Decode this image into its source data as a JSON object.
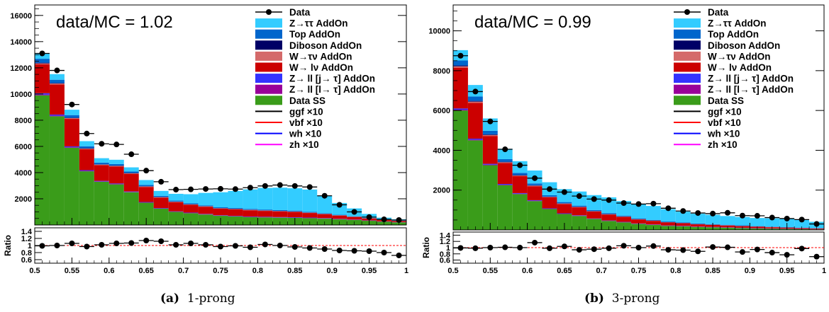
{
  "captions": [
    {
      "label": "(a)",
      "text": "1-prong"
    },
    {
      "label": "(b)",
      "text": "3-prong"
    }
  ],
  "chart_data": [
    {
      "type": "bar",
      "stacked": true,
      "panel": "a",
      "annotation": "data/MC = 1.02",
      "x_edges": [
        0.5,
        0.52,
        0.54,
        0.56,
        0.58,
        0.6,
        0.62,
        0.64,
        0.66,
        0.68,
        0.7,
        0.72,
        0.74,
        0.76,
        0.78,
        0.8,
        0.82,
        0.84,
        0.86,
        0.88,
        0.9,
        0.92,
        0.94,
        0.96,
        0.98,
        1.0
      ],
      "xlim": [
        0.5,
        1.0
      ],
      "ylim": [
        0,
        16800
      ],
      "yticks": [
        2000,
        4000,
        6000,
        8000,
        10000,
        12000,
        14000,
        16000
      ],
      "xticks": [
        0.5,
        0.55,
        0.6,
        0.65,
        0.7,
        0.75,
        0.8,
        0.85,
        0.9,
        0.95,
        1
      ],
      "xtick_labels": [
        "0.5",
        "0.55",
        "0.6",
        "0.65",
        "0.7",
        "0.75",
        "0.8",
        "0.85",
        "0.9",
        "0.95",
        "1"
      ],
      "stack": [
        {
          "name": "Data SS",
          "color": "#3a9c1a",
          "values": [
            9900,
            8300,
            5900,
            4100,
            3300,
            3100,
            2500,
            1700,
            1250,
            1000,
            900,
            800,
            700,
            650,
            600,
            580,
            560,
            550,
            520,
            480,
            430,
            380,
            320,
            250,
            200
          ]
        },
        {
          "name": "Z→ ll [l→ τ] AddOn",
          "color": "#990099",
          "values": [
            60,
            50,
            40,
            35,
            30,
            30,
            25,
            25,
            20,
            20,
            20,
            20,
            20,
            20,
            20,
            20,
            20,
            20,
            20,
            20,
            20,
            15,
            15,
            10,
            10
          ]
        },
        {
          "name": "Z→ ll [j→ τ] AddOn",
          "color": "#3333ff",
          "values": [
            100,
            80,
            60,
            50,
            40,
            40,
            35,
            30,
            25,
            25,
            25,
            25,
            25,
            25,
            25,
            25,
            25,
            25,
            25,
            25,
            20,
            20,
            15,
            15,
            10
          ]
        },
        {
          "name": "W→ lν AddOn",
          "color": "#cc0000",
          "values": [
            2200,
            2300,
            2100,
            1600,
            1200,
            1300,
            1350,
            1150,
            800,
            700,
            600,
            550,
            500,
            500,
            480,
            450,
            430,
            400,
            350,
            300,
            250,
            200,
            150,
            100,
            80
          ]
        },
        {
          "name": "W→τν AddOn",
          "color": "#d46a6a",
          "values": [
            80,
            70,
            60,
            50,
            40,
            40,
            40,
            35,
            30,
            30,
            30,
            30,
            30,
            30,
            30,
            30,
            30,
            25,
            25,
            20,
            20,
            15,
            15,
            10,
            10
          ]
        },
        {
          "name": "Diboson AddOn",
          "color": "#000066",
          "values": [
            50,
            40,
            30,
            25,
            20,
            20,
            20,
            20,
            15,
            15,
            15,
            15,
            15,
            15,
            15,
            15,
            15,
            15,
            15,
            15,
            10,
            10,
            10,
            10,
            10
          ]
        },
        {
          "name": "Top AddOn",
          "color": "#0066cc",
          "values": [
            300,
            250,
            200,
            150,
            130,
            120,
            110,
            100,
            80,
            70,
            60,
            60,
            60,
            60,
            60,
            60,
            60,
            60,
            50,
            40,
            30,
            25,
            20,
            15,
            15
          ]
        },
        {
          "name": "Z→ττ AddOn",
          "color": "#33ccff",
          "values": [
            410,
            430,
            410,
            390,
            340,
            330,
            320,
            370,
            380,
            520,
            700,
            950,
            1150,
            1300,
            1490,
            1650,
            1710,
            1710,
            1700,
            1330,
            900,
            600,
            300,
            150,
            100
          ]
        }
      ],
      "data": {
        "name": "Data",
        "values": [
          13100,
          11800,
          9200,
          6980,
          6200,
          6150,
          5400,
          4150,
          3300,
          2700,
          2720,
          2750,
          2760,
          2740,
          2850,
          2980,
          3050,
          2980,
          2900,
          2230,
          1540,
          1000,
          600,
          430,
          380
        ]
      },
      "ratio": {
        "ylabel": "Ratio",
        "ylim": [
          0.5,
          1.5
        ],
        "yticks": [
          0.6,
          0.8,
          1,
          1.2,
          1.4
        ],
        "ytick_labels": [
          "0.6",
          "0.8",
          "1",
          "1.2",
          "1.4"
        ],
        "values": [
          0.99,
          1.0,
          1.06,
          0.97,
          1.02,
          1.06,
          1.07,
          1.14,
          1.12,
          1.02,
          1.06,
          1.02,
          0.97,
          0.99,
          0.95,
          1.03,
          1.0,
          0.96,
          0.93,
          0.9,
          0.86,
          0.85,
          0.84,
          0.8,
          0.72
        ]
      },
      "overlay_lines": [
        {
          "name": "ggf ×10",
          "color": "#000000"
        },
        {
          "name": "vbf ×10",
          "color": "#ff0000"
        },
        {
          "name": "wh ×10",
          "color": "#0000ff"
        },
        {
          "name": "zh ×10",
          "color": "#ff00ff"
        }
      ],
      "legend_position": "top-right"
    },
    {
      "type": "bar",
      "stacked": true,
      "panel": "b",
      "annotation": "data/MC = 0.99",
      "x_edges": [
        0.5,
        0.52,
        0.54,
        0.56,
        0.58,
        0.6,
        0.62,
        0.64,
        0.66,
        0.68,
        0.7,
        0.72,
        0.74,
        0.76,
        0.78,
        0.8,
        0.82,
        0.84,
        0.86,
        0.88,
        0.9,
        0.92,
        0.94,
        0.96,
        0.98,
        1.0
      ],
      "xlim": [
        0.5,
        1.0
      ],
      "ylim": [
        0,
        11300
      ],
      "yticks": [
        2000,
        4000,
        6000,
        8000,
        10000
      ],
      "xticks": [
        0.5,
        0.55,
        0.6,
        0.65,
        0.7,
        0.75,
        0.8,
        0.85,
        0.9,
        0.95,
        1
      ],
      "xtick_labels": [
        "0.5",
        "0.55",
        "0.6",
        "0.65",
        "0.7",
        "0.75",
        "0.8",
        "0.85",
        "0.9",
        "0.95",
        "1"
      ],
      "stack": [
        {
          "name": "Data SS",
          "color": "#3a9c1a",
          "values": [
            6000,
            4500,
            3250,
            2250,
            1800,
            1450,
            1050,
            800,
            700,
            550,
            450,
            380,
            300,
            250,
            200,
            180,
            150,
            130,
            110,
            90,
            70,
            60,
            50,
            40,
            30
          ]
        },
        {
          "name": "Z→ ll [l→ τ] AddOn",
          "color": "#990099",
          "values": [
            40,
            35,
            30,
            25,
            20,
            20,
            15,
            15,
            15,
            10,
            10,
            10,
            10,
            10,
            10,
            10,
            10,
            10,
            10,
            10,
            10,
            5,
            5,
            5,
            5
          ]
        },
        {
          "name": "Z→ ll [j→ τ] AddOn",
          "color": "#3333ff",
          "values": [
            60,
            50,
            40,
            35,
            30,
            25,
            20,
            20,
            20,
            15,
            15,
            15,
            15,
            15,
            15,
            15,
            10,
            10,
            10,
            10,
            10,
            10,
            10,
            5,
            5
          ]
        },
        {
          "name": "W→ lν AddOn",
          "color": "#cc0000",
          "values": [
            2050,
            1800,
            1400,
            1050,
            850,
            700,
            550,
            470,
            400,
            350,
            300,
            250,
            200,
            180,
            150,
            130,
            110,
            100,
            90,
            80,
            70,
            60,
            50,
            40,
            30
          ]
        },
        {
          "name": "W→τν AddOn",
          "color": "#d46a6a",
          "values": [
            70,
            60,
            50,
            40,
            35,
            30,
            25,
            20,
            20,
            15,
            15,
            15,
            10,
            10,
            10,
            10,
            10,
            10,
            10,
            10,
            10,
            10,
            5,
            5,
            5
          ]
        },
        {
          "name": "Diboson AddOn",
          "color": "#000066",
          "values": [
            40,
            35,
            30,
            25,
            20,
            20,
            15,
            15,
            10,
            10,
            10,
            10,
            10,
            10,
            10,
            10,
            10,
            10,
            10,
            10,
            5,
            5,
            5,
            5,
            5
          ]
        },
        {
          "name": "Top AddOn",
          "color": "#0066cc",
          "values": [
            250,
            220,
            180,
            130,
            110,
            90,
            70,
            60,
            55,
            50,
            45,
            40,
            35,
            30,
            30,
            25,
            25,
            20,
            20,
            20,
            15,
            15,
            15,
            10,
            10
          ]
        },
        {
          "name": "Z→ττ AddOn",
          "color": "#33ccff",
          "values": [
            520,
            580,
            620,
            520,
            590,
            650,
            650,
            650,
            710,
            750,
            790,
            730,
            720,
            700,
            620,
            540,
            490,
            470,
            440,
            420,
            410,
            415,
            420,
            410,
            320
          ]
        },
        {
          "name": "ggf ×10",
          "color": "#990099",
          "values": [
            0,
            0,
            0,
            0,
            0,
            0,
            0,
            0,
            0,
            0,
            0,
            0,
            0,
            0,
            0,
            0,
            0,
            0,
            0,
            0,
            0,
            0,
            0,
            0,
            0
          ],
          "hidden": true
        }
      ],
      "data": {
        "name": "Data",
        "values": [
          8750,
          6950,
          5450,
          4050,
          3250,
          2600,
          2050,
          1900,
          1700,
          1550,
          1500,
          1350,
          1300,
          1320,
          1090,
          950,
          850,
          820,
          860,
          720,
          710,
          620,
          570,
          520,
          300
        ]
      },
      "ratio": {
        "ylabel": "Ratio",
        "ylim": [
          0.5,
          1.5
        ],
        "yticks": [
          0.6,
          0.8,
          1,
          1.2,
          1.4
        ],
        "ytick_labels": [
          "0.6",
          "0.8",
          "1",
          "1.2",
          "1.4"
        ],
        "values": [
          0.99,
          0.98,
          1.0,
          1.01,
          1.0,
          1.16,
          0.98,
          1.04,
          0.93,
          0.95,
          0.98,
          1.06,
          1.0,
          1.05,
          0.93,
          0.92,
          0.88,
          1.02,
          1.01,
          0.86,
          0.94,
          0.84,
          0.77,
          0.97,
          0.71
        ]
      },
      "overlay_lines": [
        {
          "name": "ggf ×10",
          "color": "#000000"
        },
        {
          "name": "vbf ×10",
          "color": "#ff0000"
        },
        {
          "name": "wh ×10",
          "color": "#0000ff"
        },
        {
          "name": "zh ×10",
          "color": "#ff00ff"
        }
      ],
      "legend_position": "top-right"
    }
  ]
}
